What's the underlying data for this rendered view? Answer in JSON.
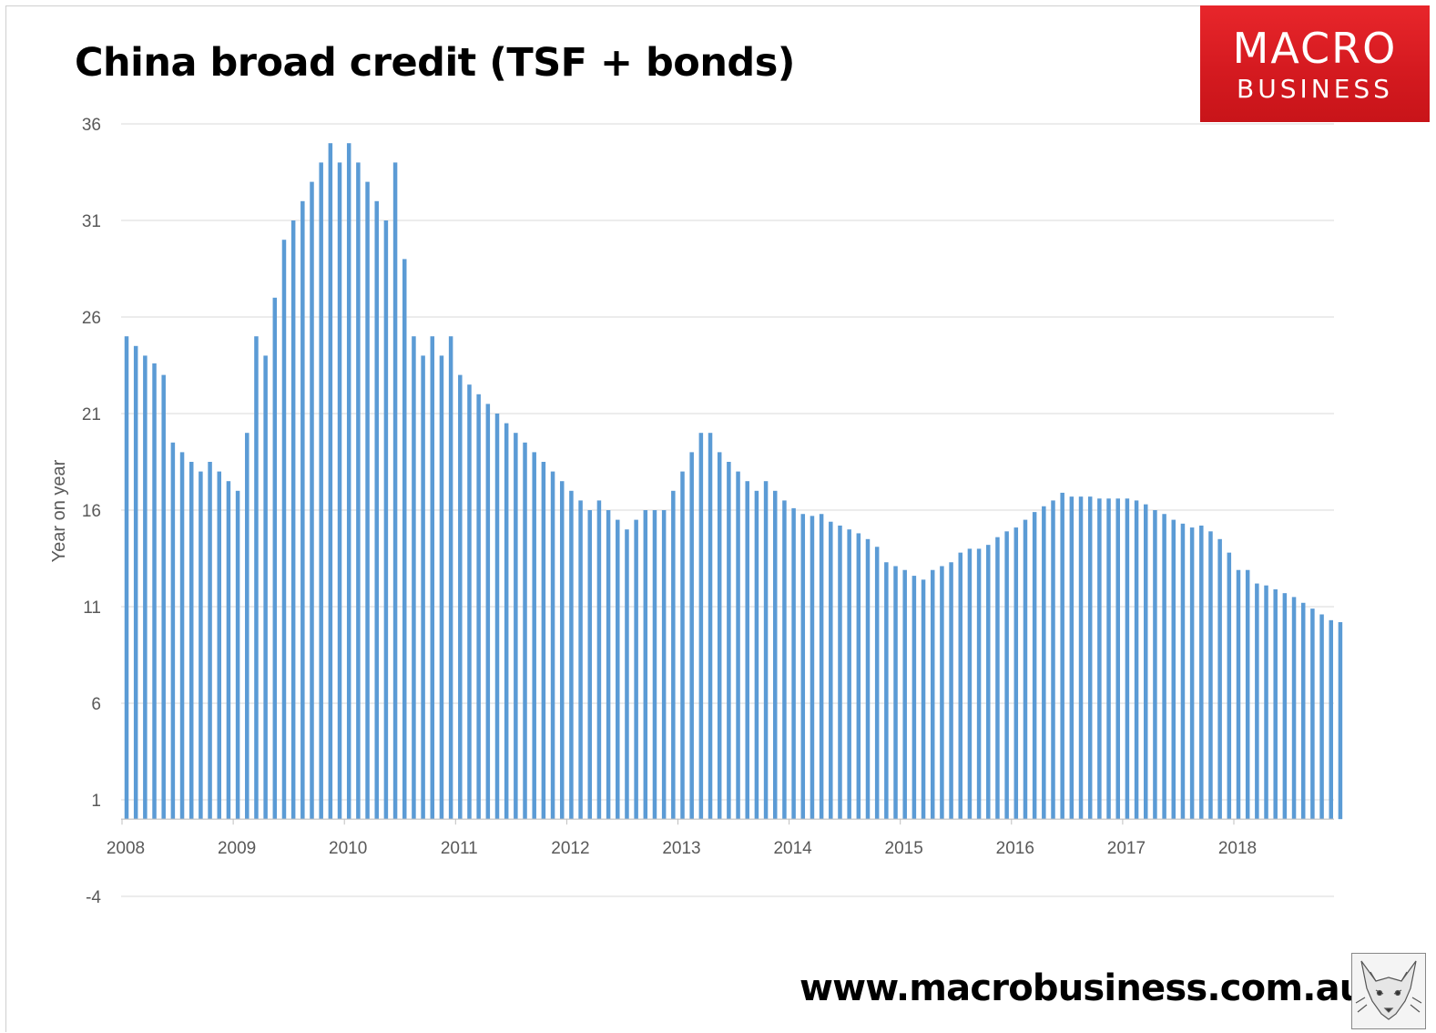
{
  "title": "China broad credit (TSF + bonds)",
  "logo": {
    "line1": "MACRO",
    "line2": "BUSINESS"
  },
  "website": "www.macrobusiness.com.au",
  "icons": {
    "mascot": "fox-mascot-icon"
  },
  "colors": {
    "bar": "#5b9bd5",
    "logo_red": "#d51a20",
    "grid": "#d9d9d9"
  },
  "chart_data": {
    "type": "bar",
    "ylabel": "Year on year",
    "xlabel": "",
    "ylim": [
      -4,
      36
    ],
    "yticks": [
      -4,
      1,
      6,
      11,
      16,
      21,
      26,
      31,
      36
    ],
    "xticks": [
      "2008",
      "2009",
      "2010",
      "2011",
      "2012",
      "2013",
      "2014",
      "2015",
      "2016",
      "2017",
      "2018"
    ],
    "grid": true,
    "x_start": "2008-01",
    "frequency": "monthly",
    "values": [
      25,
      24.5,
      24,
      23.6,
      23,
      19.5,
      19,
      18.5,
      18,
      18.5,
      18,
      17.5,
      17,
      20,
      25,
      24,
      27,
      30,
      31,
      32,
      33,
      34,
      35,
      34,
      35,
      34,
      33,
      32,
      31,
      34,
      29,
      25,
      24,
      25,
      24,
      25,
      23,
      22.5,
      22,
      21.5,
      21,
      20.5,
      20,
      19.5,
      19,
      18.5,
      18,
      17.5,
      17,
      16.5,
      16,
      16.5,
      16,
      15.5,
      15,
      15.5,
      16,
      16,
      16,
      17,
      18,
      19,
      20,
      20,
      19,
      18.5,
      18,
      17.5,
      17,
      17.5,
      17,
      16.5,
      16.1,
      15.8,
      15.7,
      15.8,
      15.4,
      15.2,
      15,
      14.8,
      14.5,
      14.1,
      13.3,
      13.1,
      12.9,
      12.6,
      12.4,
      12.9,
      13.1,
      13.3,
      13.8,
      14,
      14,
      14.2,
      14.6,
      14.9,
      15.1,
      15.5,
      15.9,
      16.2,
      16.5,
      16.9,
      16.7,
      16.7,
      16.7,
      16.6,
      16.6,
      16.6,
      16.6,
      16.5,
      16.3,
      16,
      15.8,
      15.5,
      15.3,
      15.1,
      15.2,
      14.9,
      14.5,
      13.8,
      12.9,
      12.9,
      12.2,
      12.1,
      11.9,
      11.7,
      11.5,
      11.2,
      10.9,
      10.6,
      10.3,
      10.2
    ]
  }
}
